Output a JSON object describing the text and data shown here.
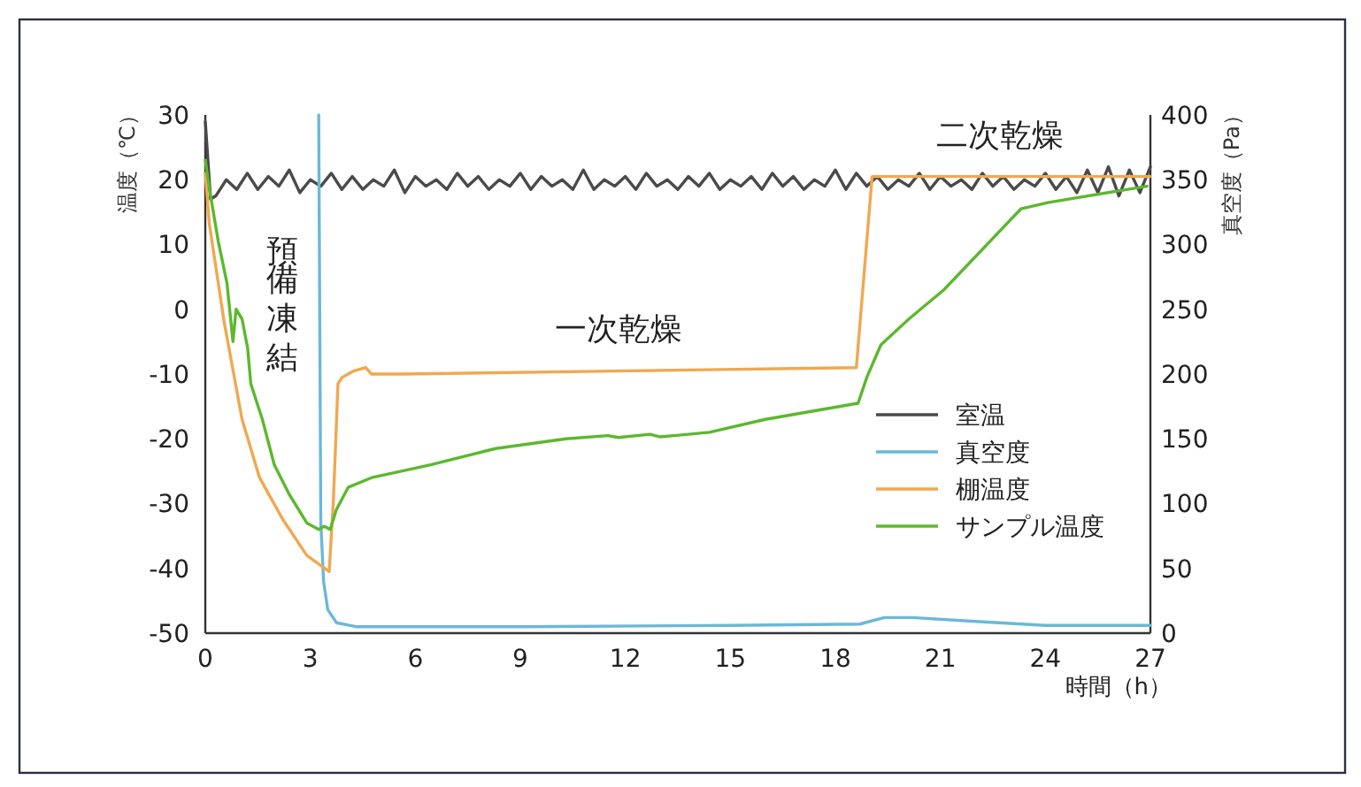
{
  "chart_data": {
    "type": "line",
    "xlabel": "時間（h）",
    "ylabel": "温度（℃）",
    "y2label": "真空度（Pa）",
    "xlim": [
      0,
      27
    ],
    "xticks": [
      0,
      3,
      6,
      9,
      12,
      15,
      18,
      21,
      24,
      27
    ],
    "ylim": [
      -50,
      30
    ],
    "yticks": [
      -50,
      -40,
      -30,
      -20,
      -10,
      0,
      10,
      20,
      30
    ],
    "y2lim": [
      0,
      400
    ],
    "y2ticks": [
      0,
      50,
      100,
      150,
      200,
      250,
      300,
      350,
      400
    ],
    "legend": "bottom right",
    "annotations": [
      "預備凍結",
      "一次乾燥",
      "二次乾燥"
    ],
    "series": [
      {
        "name": "室温",
        "color": "#4a4a4a",
        "x": [
          0,
          0.15,
          0.3,
          0.6,
          0.9,
          1.2,
          1.5,
          1.8,
          2.1,
          2.4,
          2.7,
          3.0,
          3.3,
          3.6,
          3.9,
          4.2,
          4.5,
          4.8,
          5.1,
          5.4,
          5.7,
          6.0,
          6.3,
          6.6,
          6.9,
          7.2,
          7.5,
          7.8,
          8.1,
          8.4,
          8.7,
          9.0,
          9.3,
          9.6,
          9.9,
          10.2,
          10.5,
          10.8,
          11.1,
          11.4,
          11.7,
          12.0,
          12.3,
          12.6,
          12.9,
          13.2,
          13.5,
          13.8,
          14.1,
          14.4,
          14.7,
          15.0,
          15.3,
          15.6,
          15.9,
          16.2,
          16.5,
          16.8,
          17.1,
          17.4,
          17.7,
          18.0,
          18.3,
          18.6,
          18.9,
          19.2,
          19.5,
          19.8,
          20.1,
          20.4,
          20.7,
          21.0,
          21.3,
          21.6,
          21.9,
          22.2,
          22.5,
          22.8,
          23.1,
          23.4,
          23.7,
          24.0,
          24.3,
          24.6,
          24.9,
          25.2,
          25.5,
          25.8,
          26.1,
          26.4,
          26.7,
          27.0
        ],
        "values": [
          29,
          17,
          17.5,
          20,
          18.5,
          21,
          18.5,
          20.5,
          19,
          21.5,
          18,
          20,
          19,
          21,
          18.5,
          20.5,
          18.5,
          20,
          19,
          21.5,
          18,
          20.5,
          19,
          20,
          18.5,
          21,
          19,
          20.5,
          18.5,
          20,
          19,
          21,
          18.5,
          20.5,
          19,
          20,
          18.5,
          21.5,
          18.5,
          20,
          19,
          20.5,
          18.5,
          21,
          19,
          20,
          18.5,
          20.5,
          19,
          21,
          18.5,
          20,
          19,
          20.5,
          18.5,
          21,
          19,
          20.5,
          18.5,
          20,
          19,
          21.5,
          18.5,
          21,
          19,
          20.5,
          18.5,
          20,
          19,
          21,
          18.5,
          20.5,
          19,
          20,
          18.5,
          21,
          19,
          20.5,
          18.5,
          20,
          19,
          21,
          18.5,
          20.5,
          18,
          21.5,
          18,
          22,
          17.5,
          21.5,
          18,
          22
        ]
      },
      {
        "name": "真空度",
        "color": "#6bb8d8",
        "axis": "y2",
        "x": [
          3.24,
          3.3,
          3.38,
          3.5,
          3.75,
          4.3,
          9,
          15,
          18.7,
          19.4,
          20.2,
          22,
          24,
          27
        ],
        "values": [
          400,
          85,
          40,
          18,
          8,
          5,
          5,
          6,
          7,
          12,
          12,
          9,
          6,
          6
        ]
      },
      {
        "name": "棚温度",
        "color": "#f0a850",
        "x": [
          0,
          0.12,
          0.54,
          1.05,
          1.55,
          2.22,
          2.9,
          3.54,
          3.66,
          3.79,
          3.91,
          4.25,
          4.58,
          4.75,
          5.6,
          18.6,
          19.05,
          27
        ],
        "values": [
          21,
          13,
          -2,
          -17,
          -26,
          -32.5,
          -38,
          -40.5,
          -29.5,
          -11.5,
          -10.5,
          -9.5,
          -9,
          -10,
          -10,
          -9,
          20.5,
          20.5
        ]
      },
      {
        "name": "サンプル温度",
        "color": "#5cb82e",
        "x": [
          0,
          0.12,
          0.37,
          0.62,
          0.79,
          0.88,
          1.05,
          1.21,
          1.3,
          1.63,
          1.97,
          2.39,
          2.9,
          3.24,
          3.4,
          3.57,
          3.74,
          4.08,
          4.75,
          6.44,
          8.29,
          10.3,
          11.5,
          11.8,
          12.7,
          13.0,
          14.4,
          16.0,
          18.65,
          18.9,
          19.3,
          20.1,
          21.1,
          23.3,
          24.1,
          26.9
        ],
        "values": [
          23,
          18.5,
          10.5,
          4,
          -5,
          0,
          -1.5,
          -6,
          -11.5,
          -17,
          -24,
          -28.5,
          -33,
          -34,
          -33.5,
          -34,
          -31,
          -27.5,
          -26,
          -24,
          -21.5,
          -20,
          -19.5,
          -19.8,
          -19.3,
          -19.7,
          -19,
          -17,
          -14.5,
          -10.5,
          -5.5,
          -1.5,
          3,
          15.5,
          16.5,
          19
        ]
      }
    ]
  }
}
